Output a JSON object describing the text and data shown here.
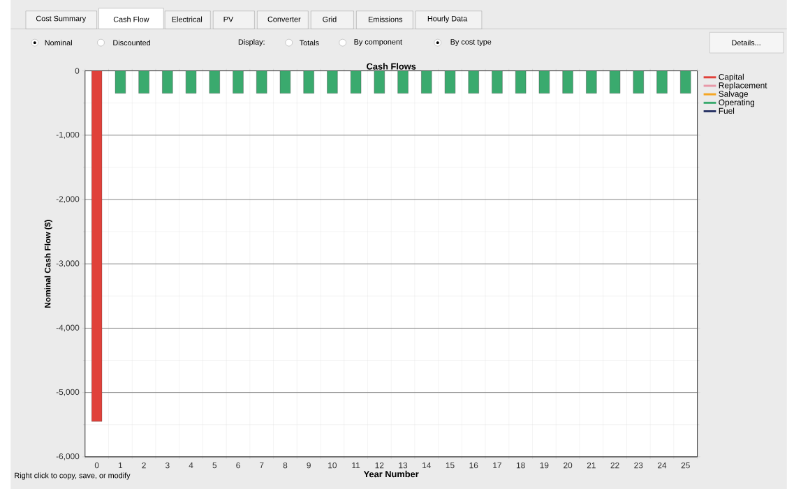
{
  "chart_data": {
    "type": "bar",
    "title": "Cash Flows",
    "xlabel": "Year Number",
    "ylabel": "Nominal Cash Flow ($)",
    "categories": [
      "0",
      "1",
      "2",
      "3",
      "4",
      "5",
      "6",
      "7",
      "8",
      "9",
      "10",
      "11",
      "12",
      "13",
      "14",
      "15",
      "16",
      "17",
      "18",
      "19",
      "20",
      "21",
      "22",
      "23",
      "24",
      "25"
    ],
    "series": [
      {
        "name": "Capital",
        "color": "#e0413a",
        "values": [
          -5450,
          null,
          null,
          null,
          null,
          null,
          null,
          null,
          null,
          null,
          null,
          null,
          null,
          null,
          null,
          null,
          null,
          null,
          null,
          null,
          null,
          null,
          null,
          null,
          null,
          null
        ]
      },
      {
        "name": "Replacement",
        "color": "#e899a8",
        "values": [
          null,
          null,
          null,
          null,
          null,
          null,
          null,
          null,
          null,
          null,
          null,
          null,
          null,
          null,
          null,
          null,
          null,
          null,
          null,
          null,
          null,
          null,
          null,
          null,
          null,
          null
        ]
      },
      {
        "name": "Salvage",
        "color": "#f5a623",
        "values": [
          null,
          null,
          null,
          null,
          null,
          null,
          null,
          null,
          null,
          null,
          null,
          null,
          null,
          null,
          null,
          null,
          null,
          null,
          null,
          null,
          null,
          null,
          null,
          null,
          null,
          null
        ]
      },
      {
        "name": "Operating",
        "color": "#3aaa6e",
        "values": [
          null,
          -350,
          -350,
          -350,
          -350,
          -350,
          -350,
          -350,
          -350,
          -350,
          -350,
          -350,
          -350,
          -350,
          -350,
          -350,
          -350,
          -350,
          -350,
          -350,
          -350,
          -350,
          -350,
          -350,
          -350,
          -350
        ]
      },
      {
        "name": "Fuel",
        "color": "#2a3566",
        "values": [
          null,
          null,
          null,
          null,
          null,
          null,
          null,
          null,
          null,
          null,
          null,
          null,
          null,
          null,
          null,
          null,
          null,
          null,
          null,
          null,
          null,
          null,
          null,
          null,
          null,
          null
        ]
      }
    ],
    "ylim": [
      -6000,
      0
    ],
    "yticks": [
      {
        "value": -6000,
        "label": "-6,000"
      },
      {
        "value": -5000,
        "label": "-5,000"
      },
      {
        "value": -4000,
        "label": "-4,000"
      },
      {
        "value": -3000,
        "label": "-3,000"
      },
      {
        "value": -2000,
        "label": "-2,000"
      },
      {
        "value": -1000,
        "label": "-1,000"
      },
      0
    ],
    "grid": true,
    "legend": "top right",
    "annotations": [
      "Cost Summary",
      "Cash Flow",
      "Electrical",
      "PV",
      "Converter",
      "Grid",
      "Emissions",
      "Hourly Data",
      "Nominal",
      "Discounted",
      "Display:",
      "Totals",
      "By component",
      "By cost type",
      "Details...",
      "Right click to copy, save, or modify"
    ]
  }
}
